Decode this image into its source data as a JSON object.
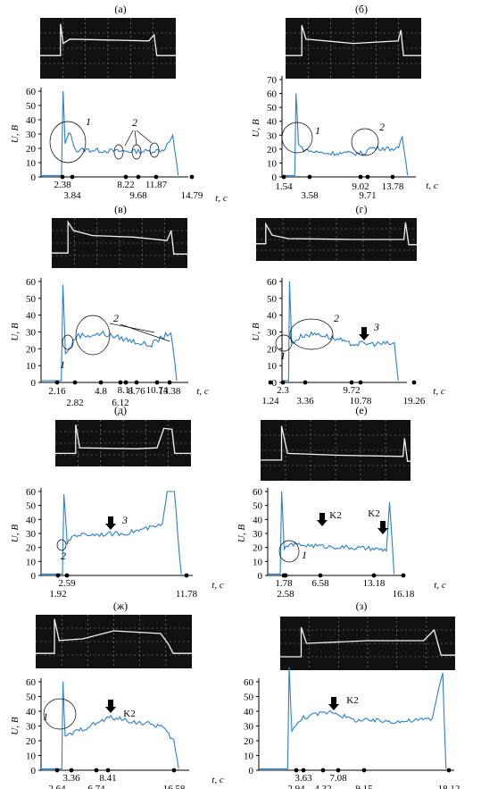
{
  "panels": [
    {
      "id": "a",
      "label": "(а)",
      "unit_y": "U, В",
      "unit_x": "t, с",
      "yticks": [
        0,
        10,
        20,
        30,
        40,
        50,
        60
      ],
      "marks_top": [
        "2.38",
        "8.22",
        "11.87"
      ],
      "marks_bottom": [
        "3.84",
        "9.68",
        "14.79"
      ],
      "annotations": [
        {
          "text": "1"
        },
        {
          "text": "2"
        }
      ]
    },
    {
      "id": "b",
      "label": "(б)",
      "unit_y": "U, В",
      "unit_x": "t, с",
      "yticks": [
        0,
        10,
        20,
        30,
        40,
        50,
        60,
        70
      ],
      "marks_top": [
        "1.54",
        "9.02",
        "13.78"
      ],
      "marks_bottom": [
        "3.58",
        "9.71"
      ],
      "annotations": [
        {
          "text": "1"
        },
        {
          "text": "2"
        }
      ]
    },
    {
      "id": "v",
      "label": "(в)",
      "unit_y": "U, В",
      "unit_x": "t, с",
      "yticks": [
        0,
        10,
        20,
        30,
        40,
        50,
        60
      ],
      "marks_top": [
        "8.11",
        "10.74"
      ],
      "marks_mid": [
        "2.16",
        "4.8",
        "8.76",
        "13.38"
      ],
      "marks_bottom": [
        "2.82",
        "6.12"
      ],
      "annotations": [
        {
          "text": "1"
        },
        {
          "text": "2"
        }
      ]
    },
    {
      "id": "g",
      "label": "(г)",
      "unit_y": "U, В",
      "unit_x": "t, с",
      "yticks": [
        0,
        10,
        20,
        30,
        40,
        50,
        60
      ],
      "marks_top": [
        "2.3",
        "9.72"
      ],
      "marks_bottom": [
        "1.24",
        "3.36",
        "10.78",
        "19.26"
      ],
      "annotations": [
        {
          "text": "1"
        },
        {
          "text": "2"
        },
        {
          "text": "3"
        }
      ]
    },
    {
      "id": "d",
      "label": "(д)",
      "unit_y": "U, В",
      "unit_x": "t, с",
      "yticks": [
        0,
        10,
        20,
        30,
        40,
        50,
        60
      ],
      "marks_top": [
        "2.59"
      ],
      "marks_bottom": [
        "1.92",
        "11.78"
      ],
      "annotations": [
        {
          "text": "2"
        },
        {
          "text": "3"
        }
      ]
    },
    {
      "id": "e",
      "label": "(е)",
      "unit_y": "U, В",
      "unit_x": "t, с",
      "yticks": [
        0,
        10,
        20,
        30,
        40,
        50,
        60
      ],
      "marks_top": [
        "1.78",
        "6.58",
        "13.18"
      ],
      "marks_bottom": [
        "2.58",
        "16.18"
      ],
      "annotations": [
        {
          "text": "1"
        },
        {
          "text": "K2"
        },
        {
          "text": "K2"
        }
      ]
    },
    {
      "id": "zh",
      "label": "(ж)",
      "unit_y": "U, В",
      "unit_x": "t, с",
      "yticks": [
        0,
        10,
        20,
        30,
        40,
        50,
        60
      ],
      "marks_top": [
        "3.36",
        "8.41"
      ],
      "marks_bottom": [
        "2.64",
        "6.74",
        "16.58"
      ],
      "annotations": [
        {
          "text": "1"
        },
        {
          "text": "K2"
        }
      ]
    },
    {
      "id": "z",
      "label": "(з)",
      "unit_y": "",
      "unit_x": "t, с",
      "yticks": [
        0,
        10,
        20,
        30,
        40,
        50,
        60
      ],
      "marks_top": [
        "3.63",
        "7.08"
      ],
      "marks_bottom": [
        "2.94",
        "4.32",
        "9.15",
        "18.12"
      ],
      "annotations": [
        {
          "text": "K2"
        }
      ]
    }
  ],
  "chart_data": [
    {
      "type": "line",
      "panel": "а",
      "ylabel": "U, В",
      "xlabel": "t, с",
      "ylim": [
        0,
        60
      ],
      "x": [
        0,
        2.2,
        2.38,
        2.6,
        3.0,
        3.84,
        4.5,
        8.22,
        9.68,
        11.87,
        13.2,
        14.2,
        14.79
      ],
      "values": [
        1,
        1,
        60,
        22,
        32,
        18,
        19,
        18,
        18,
        18,
        19,
        28,
        1
      ]
    },
    {
      "type": "line",
      "panel": "б",
      "ylabel": "U, В",
      "xlabel": "t, с",
      "ylim": [
        0,
        70
      ],
      "x": [
        0,
        1.4,
        1.54,
        1.8,
        2.2,
        3.58,
        5,
        9.02,
        9.71,
        12.8,
        13.2,
        13.78
      ],
      "values": [
        1,
        1,
        60,
        25,
        20,
        18,
        17,
        17,
        21,
        20,
        29,
        1
      ]
    },
    {
      "type": "line",
      "panel": "в",
      "ylabel": "U, В",
      "xlabel": "t, с",
      "ylim": [
        0,
        60
      ],
      "x": [
        0,
        2.0,
        2.16,
        2.4,
        2.82,
        3.5,
        4.8,
        6.12,
        8.11,
        8.76,
        10.74,
        12.8,
        13.38
      ],
      "values": [
        1,
        1,
        58,
        18,
        20,
        28,
        28,
        29,
        26,
        25,
        22,
        30,
        1
      ]
    },
    {
      "type": "line",
      "panel": "г",
      "ylabel": "U, В",
      "xlabel": "t, с",
      "ylim": [
        0,
        60
      ],
      "x": [
        0,
        1.1,
        1.24,
        1.6,
        2.3,
        3.36,
        6,
        9.72,
        10.78,
        18.6,
        19.26
      ],
      "values": [
        1,
        1,
        60,
        24,
        25,
        28,
        29,
        25,
        23,
        23,
        1
      ]
    },
    {
      "type": "line",
      "panel": "д",
      "ylabel": "U, В",
      "xlabel": "t, с",
      "ylim": [
        0,
        60
      ],
      "x": [
        0,
        1.8,
        1.92,
        2.2,
        2.59,
        3.0,
        7,
        10.2,
        10.6,
        11.2,
        11.78
      ],
      "values": [
        1,
        1,
        58,
        22,
        28,
        29,
        30,
        36,
        60,
        60,
        1
      ]
    },
    {
      "type": "line",
      "panel": "е",
      "ylabel": "U, В",
      "xlabel": "t, с",
      "ylim": [
        0,
        60
      ],
      "x": [
        0,
        1.6,
        1.78,
        2.1,
        2.58,
        4,
        6.58,
        10,
        13.18,
        15.2,
        15.6,
        16.18
      ],
      "values": [
        1,
        1,
        60,
        18,
        22,
        22,
        21,
        20,
        19,
        18,
        52,
        1
      ]
    },
    {
      "type": "line",
      "panel": "ж",
      "ylabel": "U, В",
      "xlabel": "t, с",
      "ylim": [
        0,
        60
      ],
      "x": [
        0,
        2.5,
        2.64,
        2.9,
        3.36,
        5,
        6.74,
        8.41,
        11,
        14.5,
        16.0,
        16.58
      ],
      "values": [
        1,
        1,
        60,
        22,
        24,
        28,
        32,
        36,
        33,
        30,
        20,
        1
      ]
    },
    {
      "type": "line",
      "panel": "з",
      "ylabel": "",
      "xlabel": "t, с",
      "ylim": [
        0,
        60
      ],
      "x": [
        0,
        2.8,
        2.94,
        3.2,
        3.63,
        4.32,
        7.08,
        9.15,
        14,
        16.8,
        17.4,
        17.8,
        18.12
      ],
      "values": [
        1,
        1,
        70,
        28,
        30,
        36,
        40,
        34,
        33,
        35,
        55,
        66,
        1
      ]
    }
  ]
}
